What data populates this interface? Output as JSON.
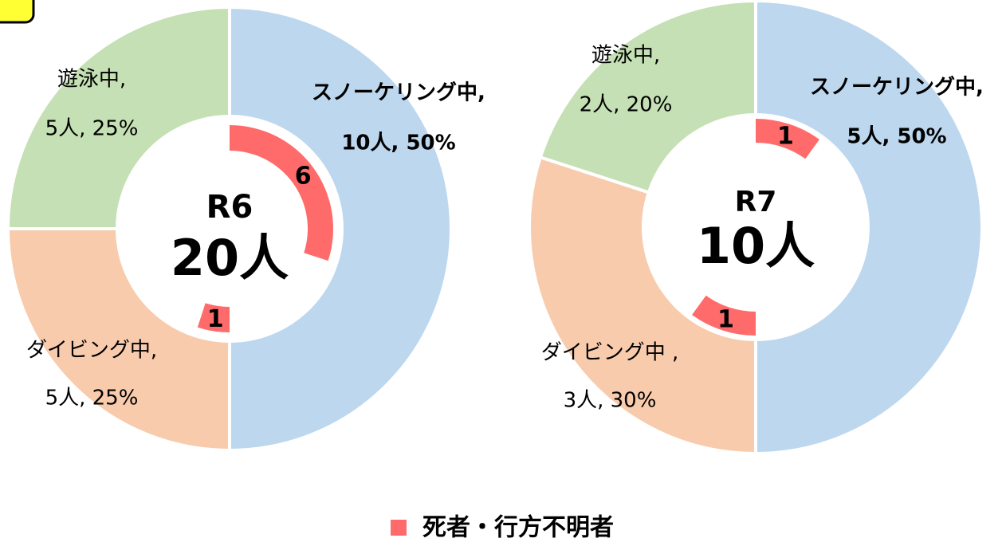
{
  "chart_data": [
    {
      "type": "donut",
      "title": "R6",
      "center_label": "20人",
      "categories": [
        "スノーケリング中,",
        "ダイビング中,",
        "遊泳中,"
      ],
      "values": [
        10,
        5,
        5
      ],
      "value_labels": [
        "10人, 50%",
        "5人, 25%",
        "5人, 25%"
      ],
      "colors": [
        "#bdd7ee",
        "#f8cbad",
        "#c5e0b4"
      ],
      "inner_values": [
        6,
        1,
        0
      ]
    },
    {
      "type": "donut",
      "title": "R7",
      "center_label": "10人",
      "categories": [
        "スノーケリング中,",
        "ダイビング中 ,",
        "遊泳中,"
      ],
      "values": [
        5,
        3,
        2
      ],
      "value_labels": [
        "5人, 50%",
        "3人, 30%",
        "2人, 20%"
      ],
      "colors": [
        "#bdd7ee",
        "#f8cbad",
        "#c5e0b4"
      ],
      "inner_values": [
        1,
        1,
        0
      ]
    }
  ],
  "legend": {
    "name": "死者・行方不明者",
    "color": "#ff6b6b"
  }
}
